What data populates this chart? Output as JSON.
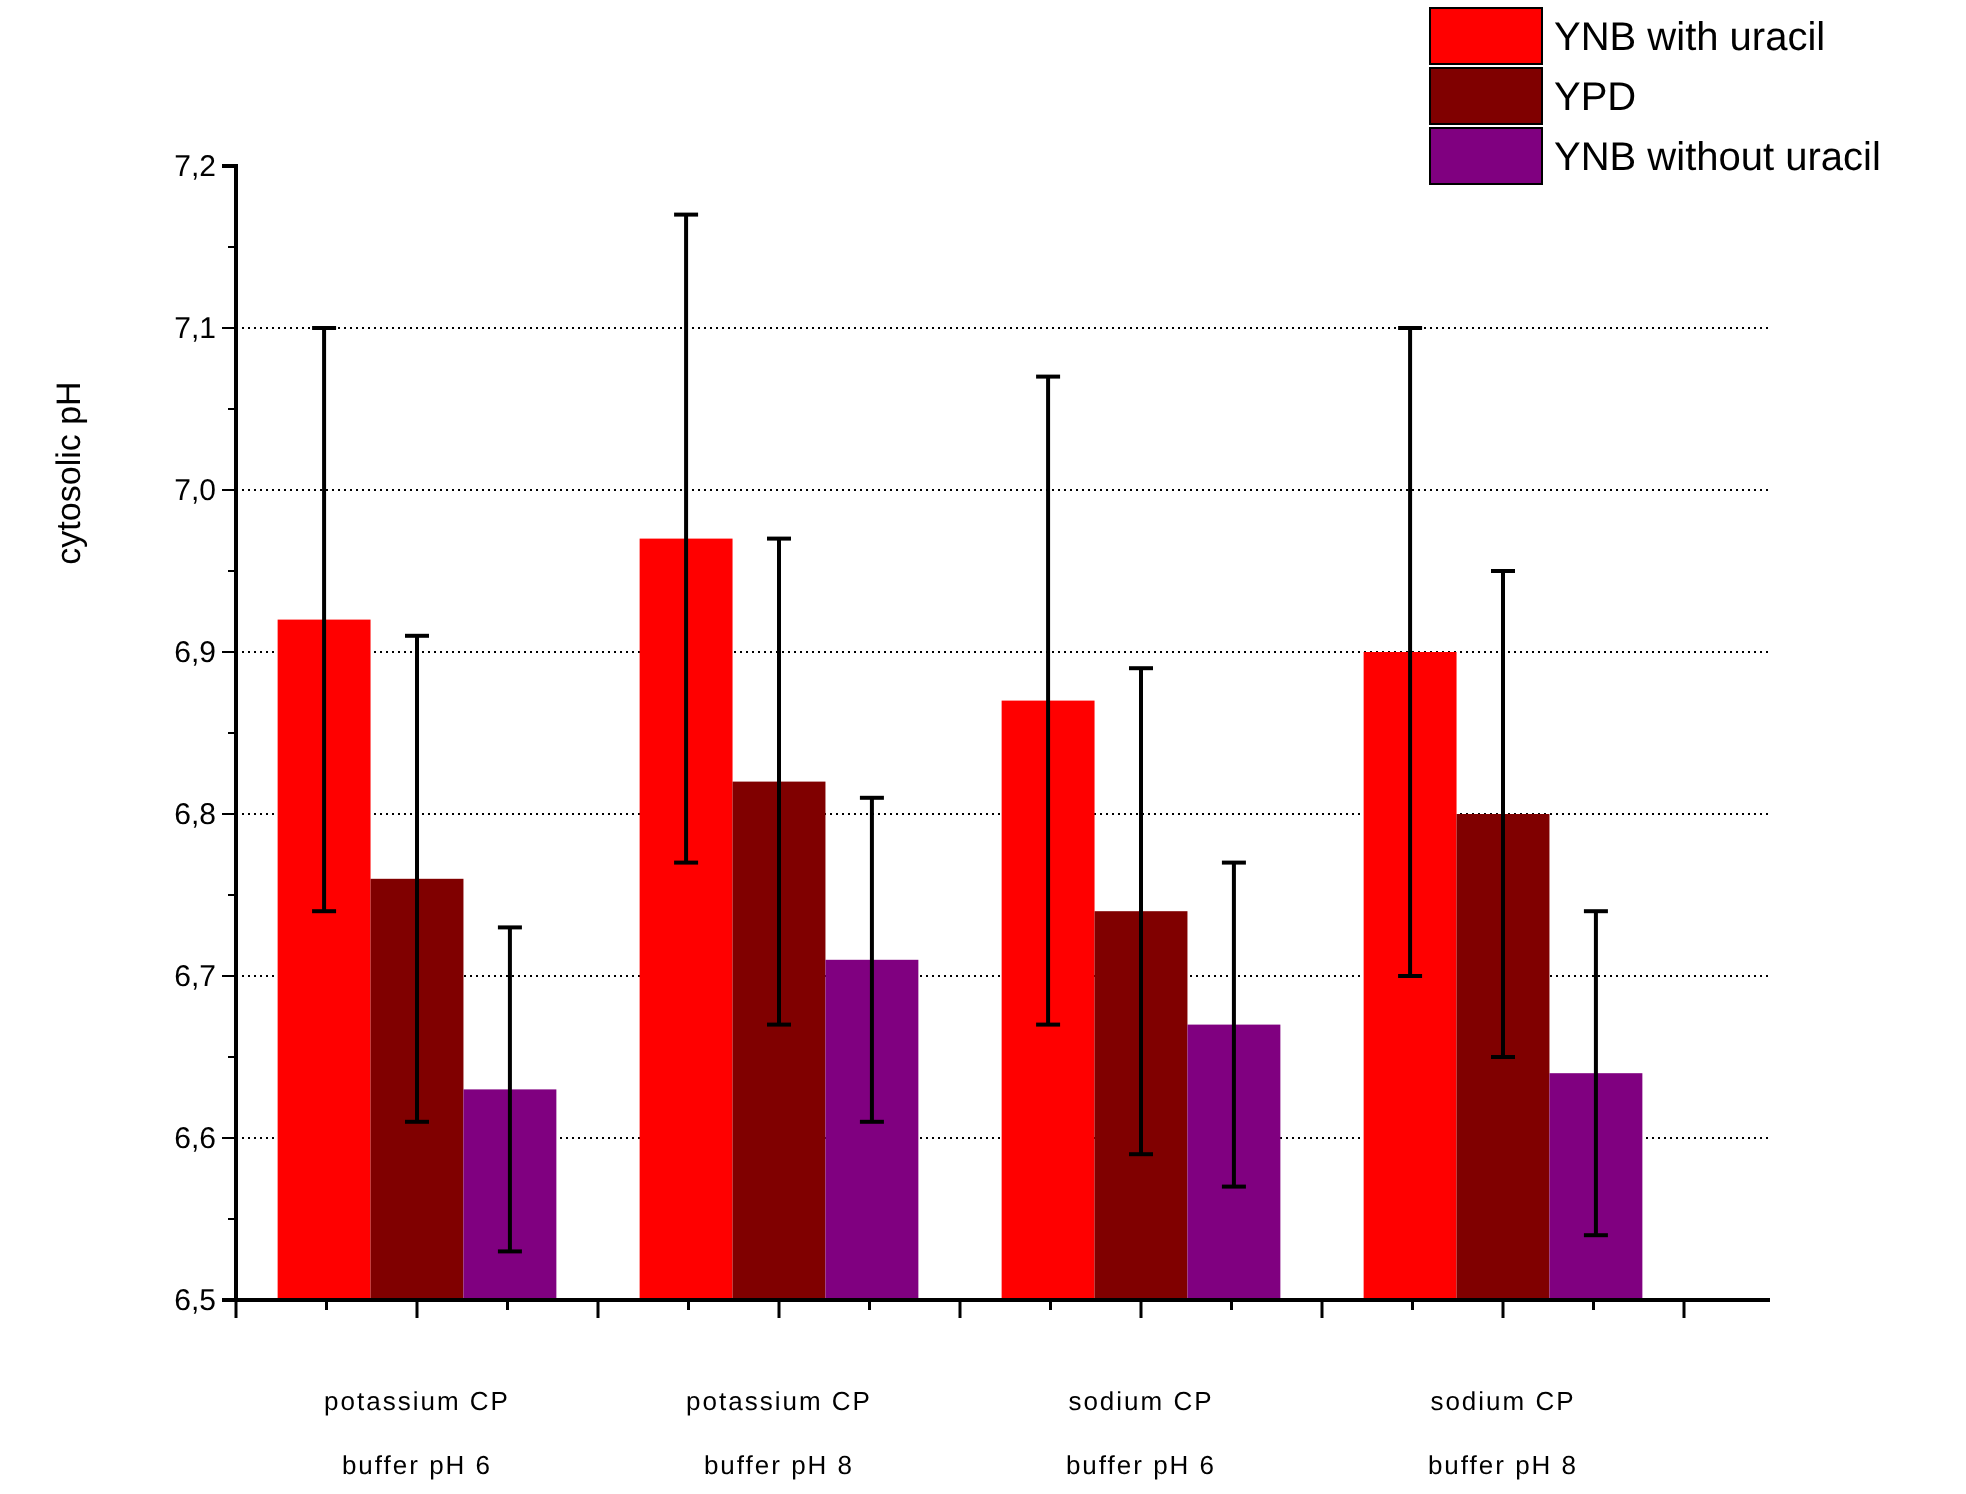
{
  "chart_data": {
    "type": "bar",
    "ylabel": "cytosolic pH",
    "categories": [
      "potassium CP\nbuffer pH 6",
      "potassium CP\nbuffer pH 8",
      "sodium CP\nbuffer pH 6",
      "sodium CP\nbuffer pH 8"
    ],
    "series": [
      {
        "name": "YNB with uracil",
        "color": "#ff0000",
        "values": [
          6.92,
          6.97,
          6.87,
          6.9
        ],
        "errors": [
          [
            6.74,
            7.1
          ],
          [
            6.77,
            7.17
          ],
          [
            6.67,
            7.07
          ],
          [
            6.7,
            7.1
          ]
        ]
      },
      {
        "name": "YPD",
        "color": "#800000",
        "values": [
          6.76,
          6.82,
          6.74,
          6.8
        ],
        "errors": [
          [
            6.61,
            6.91
          ],
          [
            6.67,
            6.97
          ],
          [
            6.59,
            6.89
          ],
          [
            6.65,
            6.95
          ]
        ]
      },
      {
        "name": "YNB without uracil",
        "color": "#800080",
        "values": [
          6.63,
          6.71,
          6.67,
          6.64
        ],
        "errors": [
          [
            6.53,
            6.73
          ],
          [
            6.61,
            6.81
          ],
          [
            6.57,
            6.77
          ],
          [
            6.54,
            6.74
          ]
        ]
      }
    ],
    "ylim": [
      6.5,
      7.2
    ],
    "yticks": [
      {
        "value": 6.5,
        "label": "6,5"
      },
      {
        "value": 6.6,
        "label": "6,6"
      },
      {
        "value": 6.7,
        "label": "6,7"
      },
      {
        "value": 6.8,
        "label": "6,8"
      },
      {
        "value": 6.9,
        "label": "6,9"
      },
      {
        "value": 7.0,
        "label": "7,0"
      },
      {
        "value": 7.1,
        "label": "7,1"
      },
      {
        "value": 7.2,
        "label": "7,2"
      }
    ],
    "grid": "y",
    "legend": "top right"
  }
}
